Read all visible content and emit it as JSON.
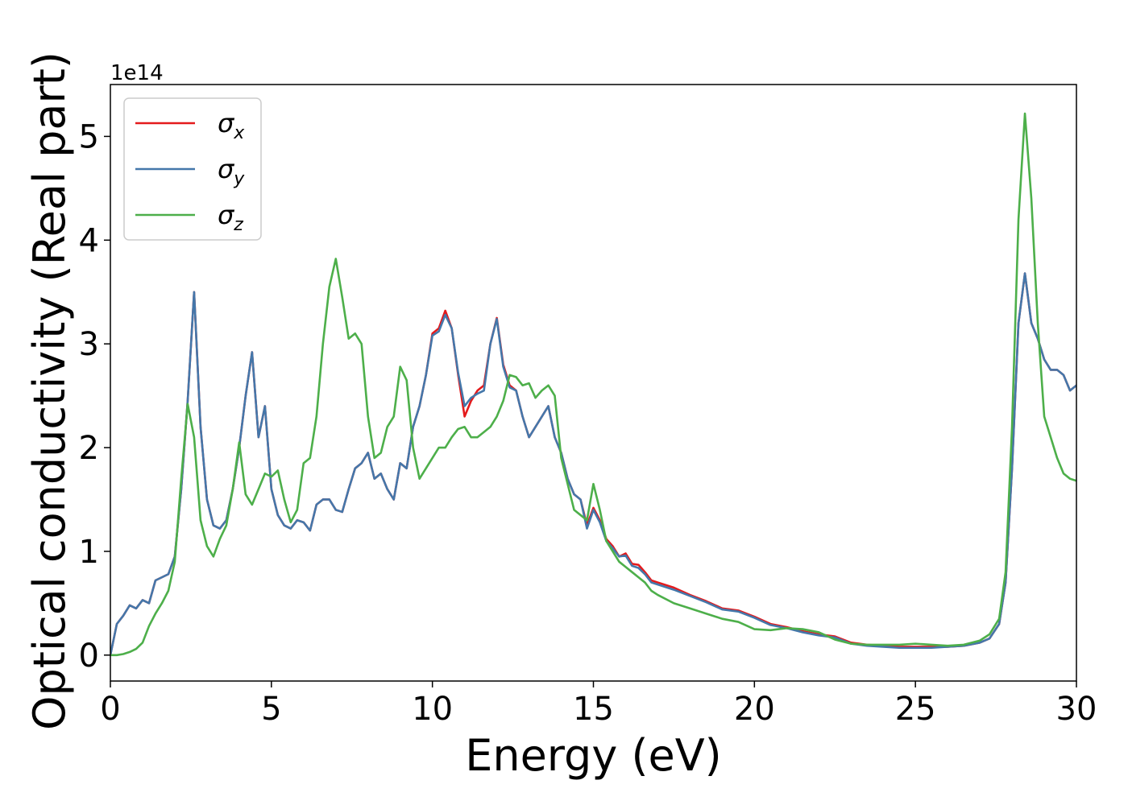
{
  "chart_data": {
    "type": "line",
    "title": "",
    "xlabel": "Energy (eV)",
    "ylabel": "Optical conductivity (Real part)",
    "y_offset_label": "1e14",
    "y_scale": 100000000000000.0,
    "xlim": [
      0,
      30
    ],
    "ylim": [
      -0.25,
      5.5
    ],
    "xticks": [
      0,
      5,
      10,
      15,
      20,
      25,
      30
    ],
    "xtick_labels": [
      "0",
      "5",
      "10",
      "15",
      "20",
      "25",
      "30"
    ],
    "yticks": [
      0,
      1,
      2,
      3,
      4,
      5
    ],
    "ytick_labels": [
      "0",
      "1",
      "2",
      "3",
      "4",
      "5"
    ],
    "grid": false,
    "legend_position": "top-left",
    "series": [
      {
        "name": "σ_x",
        "legend_symbol": "σ",
        "legend_subscript": "x",
        "color": "#e41a1c",
        "x": [
          0,
          0.2,
          0.4,
          0.6,
          0.8,
          1.0,
          1.2,
          1.4,
          1.6,
          1.8,
          2.0,
          2.2,
          2.4,
          2.6,
          2.8,
          3.0,
          3.2,
          3.4,
          3.6,
          3.8,
          4.0,
          4.2,
          4.4,
          4.6,
          4.8,
          5.0,
          5.2,
          5.4,
          5.6,
          5.8,
          6.0,
          6.2,
          6.4,
          6.6,
          6.8,
          7.0,
          7.2,
          7.4,
          7.6,
          7.8,
          8.0,
          8.2,
          8.4,
          8.6,
          8.8,
          9.0,
          9.2,
          9.4,
          9.6,
          9.8,
          10.0,
          10.2,
          10.4,
          10.6,
          10.8,
          11.0,
          11.2,
          11.4,
          11.6,
          11.8,
          12.0,
          12.2,
          12.4,
          12.6,
          12.8,
          13.0,
          13.2,
          13.4,
          13.6,
          13.8,
          14.0,
          14.2,
          14.4,
          14.6,
          14.8,
          15.0,
          15.2,
          15.4,
          15.6,
          15.8,
          16.0,
          16.2,
          16.4,
          16.6,
          16.8,
          17.0,
          17.5,
          18.0,
          18.5,
          19.0,
          19.5,
          20.0,
          20.5,
          21.0,
          21.5,
          22.0,
          22.5,
          23.0,
          23.5,
          24.0,
          24.5,
          25.0,
          25.5,
          26.0,
          26.5,
          27.0,
          27.3,
          27.6,
          27.8,
          28.0,
          28.2,
          28.4,
          28.6,
          28.8,
          29.0,
          29.2,
          29.4,
          29.6,
          29.8,
          30.0
        ],
        "y": [
          0.0,
          0.3,
          0.38,
          0.48,
          0.45,
          0.53,
          0.5,
          0.72,
          0.75,
          0.78,
          0.95,
          1.6,
          2.45,
          3.5,
          2.2,
          1.5,
          1.25,
          1.22,
          1.3,
          1.6,
          2.0,
          2.5,
          2.92,
          2.1,
          2.4,
          1.6,
          1.35,
          1.25,
          1.22,
          1.3,
          1.28,
          1.2,
          1.45,
          1.5,
          1.5,
          1.4,
          1.38,
          1.6,
          1.8,
          1.85,
          1.95,
          1.7,
          1.75,
          1.6,
          1.5,
          1.85,
          1.8,
          2.2,
          2.4,
          2.7,
          3.1,
          3.15,
          3.32,
          3.15,
          2.7,
          2.3,
          2.45,
          2.55,
          2.6,
          3.0,
          3.25,
          2.8,
          2.6,
          2.55,
          2.3,
          2.1,
          2.2,
          2.3,
          2.4,
          2.1,
          1.95,
          1.7,
          1.55,
          1.5,
          1.25,
          1.42,
          1.3,
          1.12,
          1.05,
          0.95,
          0.98,
          0.88,
          0.87,
          0.8,
          0.72,
          0.7,
          0.65,
          0.58,
          0.52,
          0.45,
          0.43,
          0.37,
          0.3,
          0.27,
          0.23,
          0.2,
          0.18,
          0.12,
          0.1,
          0.09,
          0.08,
          0.08,
          0.08,
          0.08,
          0.09,
          0.12,
          0.16,
          0.3,
          0.7,
          1.8,
          3.2,
          3.68,
          3.2,
          3.05,
          2.85,
          2.75,
          2.75,
          2.7,
          2.55,
          2.6
        ]
      },
      {
        "name": "σ_y",
        "legend_symbol": "σ",
        "legend_subscript": "y",
        "color": "#4477aa",
        "x": [
          0,
          0.2,
          0.4,
          0.6,
          0.8,
          1.0,
          1.2,
          1.4,
          1.6,
          1.8,
          2.0,
          2.2,
          2.4,
          2.6,
          2.8,
          3.0,
          3.2,
          3.4,
          3.6,
          3.8,
          4.0,
          4.2,
          4.4,
          4.6,
          4.8,
          5.0,
          5.2,
          5.4,
          5.6,
          5.8,
          6.0,
          6.2,
          6.4,
          6.6,
          6.8,
          7.0,
          7.2,
          7.4,
          7.6,
          7.8,
          8.0,
          8.2,
          8.4,
          8.6,
          8.8,
          9.0,
          9.2,
          9.4,
          9.6,
          9.8,
          10.0,
          10.2,
          10.4,
          10.6,
          10.8,
          11.0,
          11.2,
          11.4,
          11.6,
          11.8,
          12.0,
          12.2,
          12.4,
          12.6,
          12.8,
          13.0,
          13.2,
          13.4,
          13.6,
          13.8,
          14.0,
          14.2,
          14.4,
          14.6,
          14.8,
          15.0,
          15.2,
          15.4,
          15.6,
          15.8,
          16.0,
          16.2,
          16.4,
          16.6,
          16.8,
          17.0,
          17.5,
          18.0,
          18.5,
          19.0,
          19.5,
          20.0,
          20.5,
          21.0,
          21.5,
          22.0,
          22.5,
          23.0,
          23.5,
          24.0,
          24.5,
          25.0,
          25.5,
          26.0,
          26.5,
          27.0,
          27.3,
          27.6,
          27.8,
          28.0,
          28.2,
          28.4,
          28.6,
          28.8,
          29.0,
          29.2,
          29.4,
          29.6,
          29.8,
          30.0
        ],
        "y": [
          0.0,
          0.3,
          0.38,
          0.48,
          0.45,
          0.53,
          0.5,
          0.72,
          0.75,
          0.78,
          0.95,
          1.6,
          2.45,
          3.5,
          2.2,
          1.5,
          1.25,
          1.22,
          1.3,
          1.6,
          2.0,
          2.5,
          2.92,
          2.1,
          2.4,
          1.6,
          1.35,
          1.25,
          1.22,
          1.3,
          1.28,
          1.2,
          1.45,
          1.5,
          1.5,
          1.4,
          1.38,
          1.6,
          1.8,
          1.85,
          1.95,
          1.7,
          1.75,
          1.6,
          1.5,
          1.85,
          1.8,
          2.2,
          2.4,
          2.7,
          3.08,
          3.12,
          3.28,
          3.15,
          2.72,
          2.4,
          2.48,
          2.52,
          2.55,
          3.0,
          3.24,
          2.78,
          2.58,
          2.55,
          2.3,
          2.1,
          2.2,
          2.3,
          2.4,
          2.1,
          1.95,
          1.7,
          1.55,
          1.5,
          1.22,
          1.4,
          1.28,
          1.1,
          1.03,
          0.95,
          0.96,
          0.86,
          0.84,
          0.78,
          0.7,
          0.68,
          0.63,
          0.57,
          0.51,
          0.44,
          0.42,
          0.36,
          0.29,
          0.26,
          0.22,
          0.19,
          0.17,
          0.11,
          0.09,
          0.08,
          0.07,
          0.07,
          0.07,
          0.08,
          0.09,
          0.12,
          0.16,
          0.3,
          0.7,
          1.8,
          3.2,
          3.68,
          3.2,
          3.05,
          2.85,
          2.75,
          2.75,
          2.7,
          2.55,
          2.6
        ]
      },
      {
        "name": "σ_z",
        "legend_symbol": "σ",
        "legend_subscript": "z",
        "color": "#4daf4a",
        "x": [
          0,
          0.2,
          0.4,
          0.6,
          0.8,
          1.0,
          1.2,
          1.4,
          1.6,
          1.8,
          2.0,
          2.2,
          2.4,
          2.6,
          2.8,
          3.0,
          3.2,
          3.4,
          3.6,
          3.8,
          4.0,
          4.2,
          4.4,
          4.6,
          4.8,
          5.0,
          5.2,
          5.4,
          5.6,
          5.8,
          6.0,
          6.2,
          6.4,
          6.6,
          6.8,
          7.0,
          7.2,
          7.4,
          7.6,
          7.8,
          8.0,
          8.2,
          8.4,
          8.6,
          8.8,
          9.0,
          9.2,
          9.4,
          9.6,
          9.8,
          10.0,
          10.2,
          10.4,
          10.6,
          10.8,
          11.0,
          11.2,
          11.4,
          11.6,
          11.8,
          12.0,
          12.2,
          12.4,
          12.6,
          12.8,
          13.0,
          13.2,
          13.4,
          13.6,
          13.8,
          14.0,
          14.2,
          14.4,
          14.6,
          14.8,
          15.0,
          15.2,
          15.4,
          15.6,
          15.8,
          16.0,
          16.2,
          16.4,
          16.6,
          16.8,
          17.0,
          17.5,
          18.0,
          18.5,
          19.0,
          19.5,
          20.0,
          20.5,
          21.0,
          21.5,
          22.0,
          22.5,
          23.0,
          23.5,
          24.0,
          24.5,
          25.0,
          25.5,
          26.0,
          26.5,
          27.0,
          27.3,
          27.6,
          27.8,
          28.0,
          28.2,
          28.4,
          28.6,
          28.8,
          29.0,
          29.2,
          29.4,
          29.6,
          29.8,
          30.0
        ],
        "y": [
          0.0,
          0.0,
          0.01,
          0.03,
          0.06,
          0.12,
          0.28,
          0.4,
          0.5,
          0.62,
          0.9,
          1.7,
          2.42,
          2.1,
          1.3,
          1.05,
          0.95,
          1.12,
          1.25,
          1.6,
          2.05,
          1.55,
          1.45,
          1.6,
          1.75,
          1.72,
          1.78,
          1.5,
          1.28,
          1.4,
          1.85,
          1.9,
          2.3,
          3.0,
          3.55,
          3.82,
          3.45,
          3.05,
          3.1,
          3.0,
          2.3,
          1.9,
          1.95,
          2.2,
          2.3,
          2.78,
          2.65,
          2.0,
          1.7,
          1.8,
          1.9,
          2.0,
          2.0,
          2.1,
          2.18,
          2.2,
          2.1,
          2.1,
          2.15,
          2.2,
          2.3,
          2.45,
          2.7,
          2.68,
          2.6,
          2.62,
          2.48,
          2.55,
          2.6,
          2.5,
          1.9,
          1.65,
          1.4,
          1.35,
          1.3,
          1.65,
          1.4,
          1.1,
          1.0,
          0.9,
          0.85,
          0.8,
          0.75,
          0.7,
          0.62,
          0.58,
          0.5,
          0.45,
          0.4,
          0.35,
          0.32,
          0.25,
          0.24,
          0.26,
          0.25,
          0.22,
          0.15,
          0.11,
          0.1,
          0.1,
          0.1,
          0.11,
          0.1,
          0.09,
          0.1,
          0.14,
          0.2,
          0.35,
          0.8,
          2.2,
          4.2,
          5.22,
          4.4,
          3.2,
          2.3,
          2.1,
          1.9,
          1.75,
          1.7,
          1.68
        ]
      }
    ]
  }
}
